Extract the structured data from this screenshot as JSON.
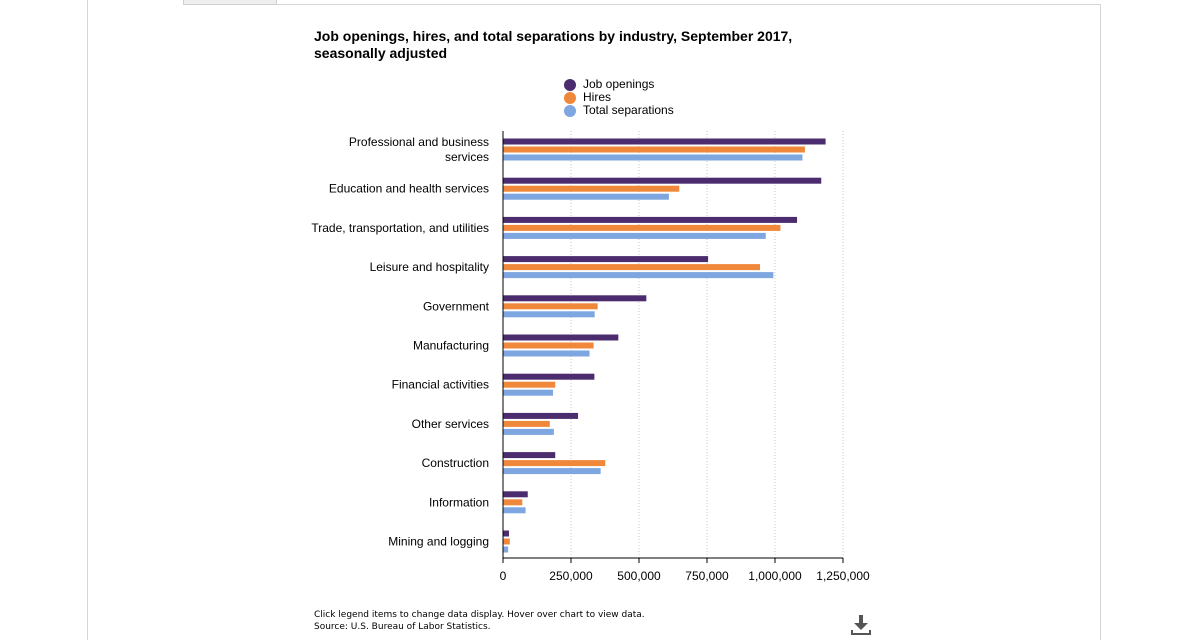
{
  "chart_data": {
    "type": "bar",
    "orientation": "horizontal",
    "title": "Job openings, hires, and total separations by industry, September 2017, seasonally adjusted",
    "categories": [
      "Professional and business services",
      "Education and health services",
      "Trade, transportation, and utilities",
      "Leisure and hospitality",
      "Government",
      "Manufacturing",
      "Financial activities",
      "Other services",
      "Construction",
      "Information",
      "Mining and logging"
    ],
    "series": [
      {
        "name": "Job openings",
        "color": "#4b2c6e",
        "values": [
          1186000,
          1170000,
          1081000,
          754000,
          527000,
          424000,
          336000,
          276000,
          192000,
          91000,
          22000
        ]
      },
      {
        "name": "Hires",
        "color": "#f0883c",
        "values": [
          1110000,
          648000,
          1020000,
          945000,
          348000,
          333000,
          192000,
          172000,
          376000,
          71000,
          25000
        ]
      },
      {
        "name": "Total separations",
        "color": "#7ea6e0",
        "values": [
          1101000,
          610000,
          966000,
          994000,
          337000,
          318000,
          184000,
          187000,
          359000,
          83000,
          19000
        ]
      }
    ],
    "xlim": [
      0,
      1250000
    ],
    "x_ticks": [
      "0",
      "250,000",
      "500,000",
      "750,000",
      "1,000,000",
      "1,250,000"
    ],
    "x_tick_values": [
      0,
      250000,
      500000,
      750000,
      1000000,
      1250000
    ],
    "grid": "vertical-dotted",
    "legend_position": "top-center"
  },
  "category_lines": [
    [
      "Professional and business",
      "services"
    ],
    [
      "Education and health services"
    ],
    [
      "Trade, transportation, and utilities"
    ],
    [
      "Leisure and hospitality"
    ],
    [
      "Government"
    ],
    [
      "Manufacturing"
    ],
    [
      "Financial activities"
    ],
    [
      "Other services"
    ],
    [
      "Construction"
    ],
    [
      "Information"
    ],
    [
      "Mining and logging"
    ]
  ],
  "footnote": {
    "line1": "Click legend items to change data display. Hover over chart to view data.",
    "line2": "Source: U.S. Bureau of Labor Statistics."
  },
  "download_icon": "download-icon"
}
